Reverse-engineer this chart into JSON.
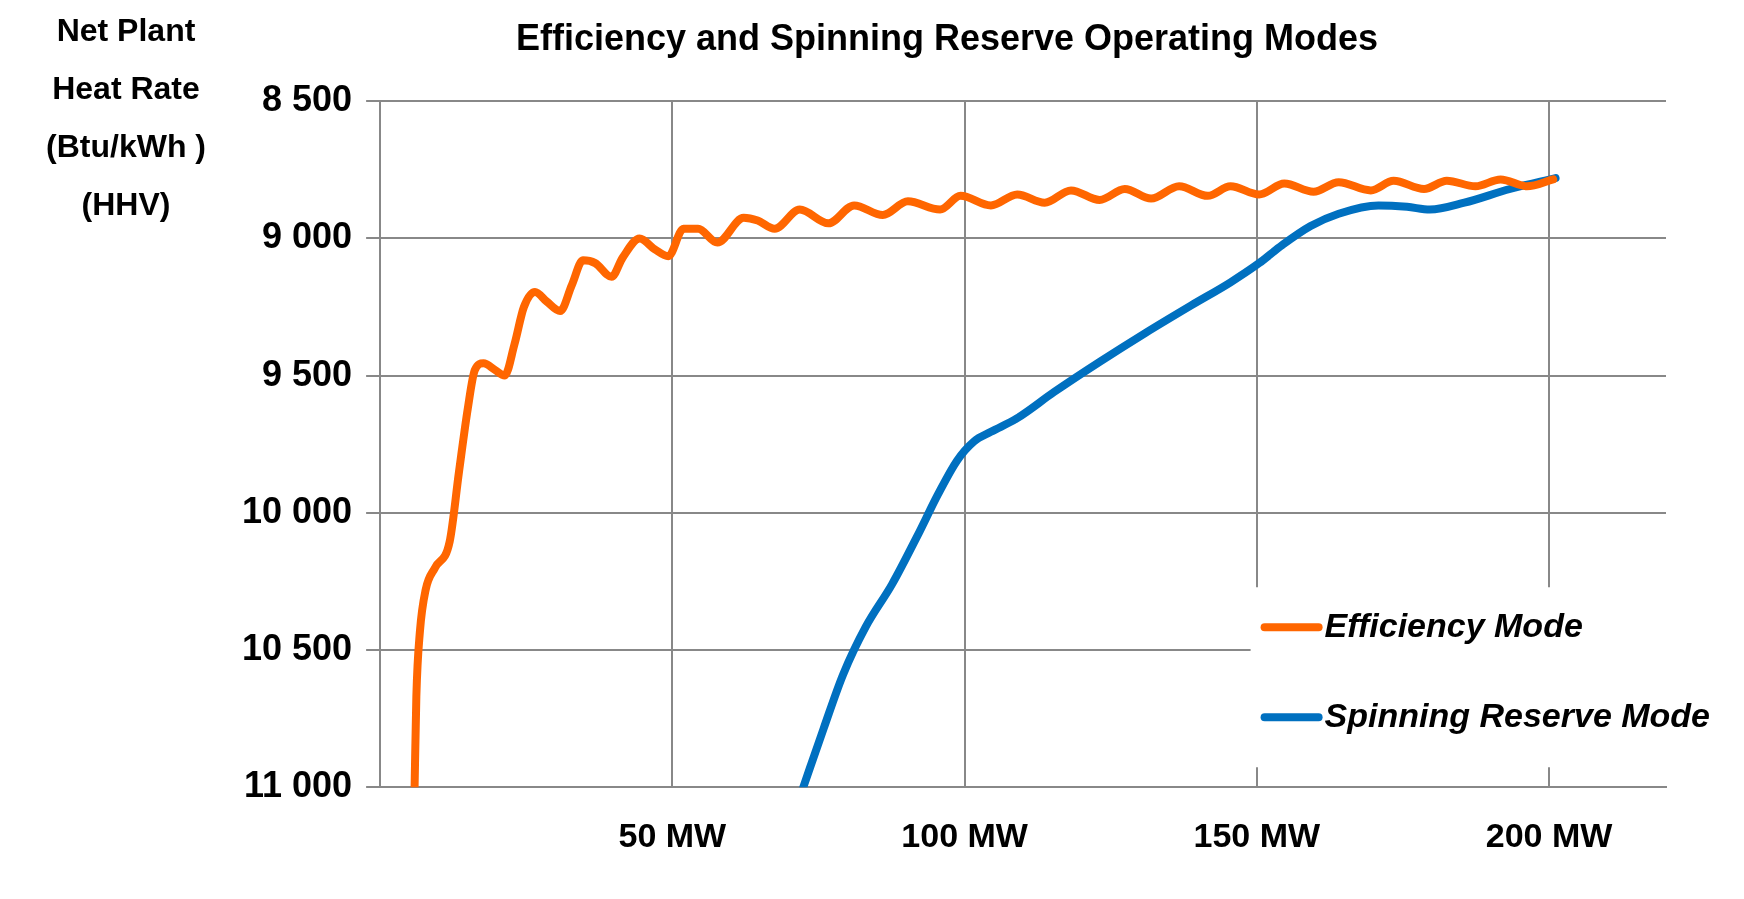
{
  "chart_data": {
    "type": "line",
    "title": "Efficiency and Spinning Reserve Operating Modes",
    "ylabel": "Net Plant Heat Rate (Btu/kWh ) (HHV)",
    "xlim": [
      0,
      220
    ],
    "xticks": [
      {
        "value": 0,
        "label": null
      },
      {
        "value": 50,
        "label": "50 MW"
      },
      {
        "value": 100,
        "label": "100 MW"
      },
      {
        "value": 150,
        "label": "150 MW"
      },
      {
        "value": 200,
        "label": "200 MW"
      }
    ],
    "ylim": [
      11000,
      8500
    ],
    "yticks": [
      {
        "value": 8500,
        "label": "8 500"
      },
      {
        "value": 9000,
        "label": "9 000"
      },
      {
        "value": 9500,
        "label": "9 500"
      },
      {
        "value": 10000,
        "label": "10 000"
      },
      {
        "value": 10500,
        "label": "10 500"
      },
      {
        "value": 11000,
        "label": "11 000"
      }
    ],
    "grid": true,
    "legend": "bottom right",
    "marker": "none",
    "line_style": "solid",
    "series": [
      {
        "name": "Efficiency Mode",
        "color": "#ff6600",
        "x": [
          5.9,
          6.2,
          6.8,
          7.8,
          9.4,
          11.9,
          13.5,
          15.0,
          16.2,
          17.7,
          19.7,
          21.3,
          23.0,
          24.6,
          26.5,
          28.5,
          30.8,
          32.8,
          34.7,
          36.8,
          39.6,
          41.5,
          44.4,
          47.0,
          49.3,
          51.9,
          54.4,
          57.7,
          62.2,
          64.6,
          67.5,
          71.8,
          76.7,
          81.1,
          86.0,
          90.3,
          95.8,
          99.3,
          104.5,
          109.0,
          113.7,
          118.2,
          123.1,
          127.4,
          131.9,
          136.7,
          141.6,
          145.5,
          150.4,
          154.7,
          159.7,
          164.0,
          169.5,
          173.4,
          178.6,
          182.5,
          187.4,
          191.7,
          196.2,
          200.7
        ],
        "values": [
          11000,
          10670,
          10435,
          10280,
          10200,
          10105,
          9850,
          9620,
          9480,
          9455,
          9480,
          9500,
          9385,
          9250,
          9195,
          9230,
          9265,
          9170,
          9080,
          9090,
          9140,
          9070,
          9000,
          9040,
          9065,
          8965,
          8965,
          9015,
          8925,
          8935,
          8965,
          8895,
          8945,
          8880,
          8915,
          8865,
          8895,
          8845,
          8880,
          8840,
          8870,
          8825,
          8860,
          8820,
          8855,
          8810,
          8845,
          8810,
          8840,
          8800,
          8830,
          8795,
          8825,
          8790,
          8820,
          8790,
          8810,
          8785,
          8810,
          8785
        ]
      },
      {
        "name": "Spinning Reserve Mode",
        "color": "#0070c0",
        "x": [
          72.4,
          75.9,
          79.2,
          83.1,
          87.6,
          91.9,
          95.4,
          98.7,
          101.6,
          104.5,
          109.0,
          115.3,
          123.1,
          130.9,
          138.7,
          145.5,
          150.4,
          154.3,
          159.2,
          164.0,
          170.8,
          175.7,
          179.6,
          185.5,
          193.3,
          201.1
        ],
        "values": [
          11000,
          10785,
          10590,
          10415,
          10260,
          10085,
          9935,
          9810,
          9740,
          9705,
          9655,
          9560,
          9450,
          9345,
          9245,
          9160,
          9090,
          9025,
          8955,
          8910,
          8880,
          8885,
          8895,
          8870,
          8820,
          8780
        ]
      }
    ]
  }
}
